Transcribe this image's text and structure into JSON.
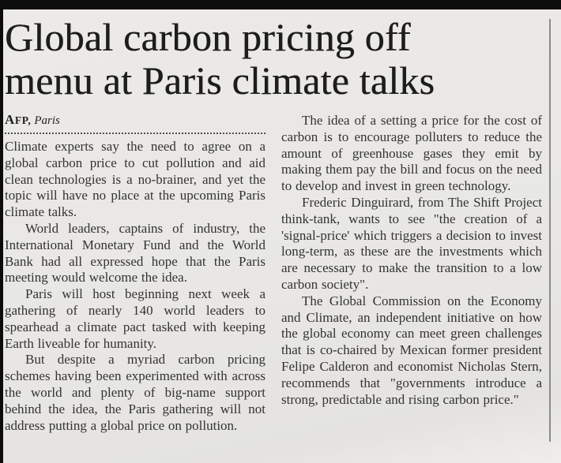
{
  "page": {
    "background_color": "#e8e7e4",
    "edge_bar_color": "#0c0c0c",
    "column_rule_color": "#8b8b8b",
    "headline_color": "#1d1d1d",
    "body_text_color": "#333333"
  },
  "article": {
    "headline": "Global carbon pricing off menu at Paris climate talks",
    "headline_lines": [
      "Global carbon pricing off",
      "menu at Paris climate talks"
    ],
    "byline": {
      "agency": "AFP,",
      "location": "Paris"
    },
    "left_column": {
      "paragraphs": [
        "Climate experts say the need to agree on a global carbon price to cut pollution and aid clean technologies is a no-brainer, and yet the topic will have no place at the upcoming Paris climate talks.",
        "World leaders, captains of industry, the International Monetary Fund and the World Bank had all expressed hope that the Paris meeting would welcome the idea.",
        "Paris will host beginning next week a gathering of nearly 140 world leaders to spearhead a climate pact tasked with keeping Earth liveable for humanity.",
        "But despite a myriad carbon pricing schemes having been experimented with across the world and plenty of big-name support behind the idea, the Paris gathering will not address putting a global price on pollution."
      ]
    },
    "right_column": {
      "paragraphs": [
        "The idea of a setting a price for the cost of carbon is to encourage polluters to reduce the amount of greenhouse gases they emit by making them pay the bill and focus on the need to develop and invest in green technology.",
        "Frederic Dinguirard, from The Shift Project think-tank, wants to see \"the creation of a 'signal-price' which triggers a decision to invest long-term, as these are the investments which are necessary to make the transition to a low carbon society\".",
        "The Global Commission on the Economy and Climate, an independent initiative on how the global economy can meet green challenges that is co-chaired by Mexican former president Felipe Calderon and economist Nicholas Stern, recommends that \"governments introduce a strong, predictable and rising carbon price.\""
      ]
    }
  }
}
